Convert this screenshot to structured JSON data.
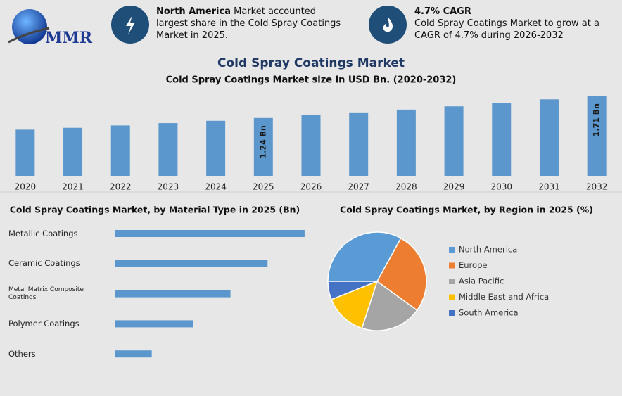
{
  "header": {
    "logo_text": "MMR",
    "info": [
      {
        "bold": "North America",
        "text": "Market accounted largest share in the Cold Spray Coatings Market in 2025."
      },
      {
        "bold": "4.7% CAGR",
        "text": "Cold Spray Coatings Market to grow at a CAGR of 4.7% during 2026-2032"
      }
    ]
  },
  "title": "Cold Spray Coatings Market",
  "chart_data": [
    {
      "type": "bar",
      "title": "Cold Spray Coatings Market size in USD Bn. (2020-2032)",
      "categories": [
        "2020",
        "2021",
        "2022",
        "2023",
        "2024",
        "2025",
        "2026",
        "2027",
        "2028",
        "2029",
        "2030",
        "2031",
        "2032"
      ],
      "values": [
        0.99,
        1.03,
        1.08,
        1.13,
        1.18,
        1.24,
        1.3,
        1.36,
        1.42,
        1.49,
        1.56,
        1.64,
        1.71
      ],
      "value_labels": [
        null,
        null,
        null,
        null,
        null,
        "1.24 Bn",
        null,
        null,
        null,
        null,
        null,
        null,
        "1.71 Bn"
      ],
      "color": "#5b97cc",
      "ylim": [
        0,
        1.75
      ]
    },
    {
      "type": "barh",
      "title": "Cold Spray Coatings Market, by Material Type in 2025 (Bn)",
      "categories": [
        "Metallic Coatings",
        "Ceramic Coatings",
        "Metal Matrix Composite Coatings",
        "Polymer Coatings",
        "Others"
      ],
      "values": [
        0.41,
        0.33,
        0.25,
        0.17,
        0.08
      ],
      "color": "#5b97cc",
      "xlim": [
        0,
        0.6
      ]
    },
    {
      "type": "pie",
      "title": "Cold Spray Coatings Market, by Region in 2025 (%)",
      "categories": [
        "North America",
        "Europe",
        "Asia Pacific",
        "Middle East and Africa",
        "South America"
      ],
      "values": [
        33,
        27,
        20,
        14,
        6
      ],
      "colors": [
        "#5b9bd5",
        "#ed7d31",
        "#a5a5a5",
        "#ffc000",
        "#4472c4"
      ]
    }
  ]
}
